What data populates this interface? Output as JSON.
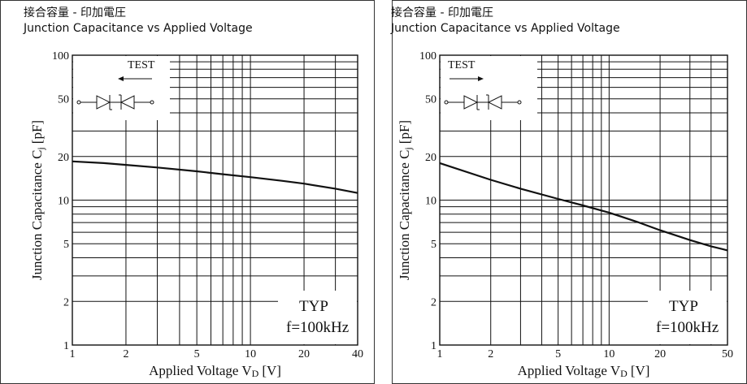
{
  "chart_data": [
    {
      "type": "line",
      "title_jp": "接合容量 - 印加電圧",
      "title": "Junction Capacitance vs Applied Voltage",
      "xlabel": "Applied Voltage V",
      "xlabel_sub": "D",
      "xlabel_unit": "[V]",
      "ylabel": "Junction Capacitance C",
      "ylabel_sub": "j",
      "ylabel_unit": "[pF]",
      "xscale": "log",
      "yscale": "log",
      "xlim": [
        1,
        40
      ],
      "ylim": [
        1,
        100
      ],
      "xticks": [
        1,
        2,
        5,
        10,
        20,
        40
      ],
      "yticks": [
        1,
        2,
        5,
        10,
        20,
        50,
        100
      ],
      "grid": true,
      "test_label": "TEST",
      "test_arrow": "left",
      "annotation": [
        "TYP",
        "f=100kHz"
      ],
      "series": [
        {
          "x": [
            1,
            1.5,
            2,
            3,
            5,
            7,
            10,
            15,
            20,
            30,
            40
          ],
          "y": [
            18.5,
            18.0,
            17.5,
            16.8,
            15.8,
            15.1,
            14.4,
            13.6,
            13.0,
            12.0,
            11.2
          ]
        }
      ]
    },
    {
      "type": "line",
      "title_jp": "接合容量 - 印加電圧",
      "title": "Junction Capacitance vs Applied Voltage",
      "xlabel": "Applied Voltage V",
      "xlabel_sub": "D",
      "xlabel_unit": "[V]",
      "ylabel": "Junction Capacitance C",
      "ylabel_sub": "j",
      "ylabel_unit": "[pF]",
      "xscale": "log",
      "yscale": "log",
      "xlim": [
        1,
        50
      ],
      "ylim": [
        1,
        100
      ],
      "xticks": [
        1,
        2,
        5,
        10,
        20,
        50
      ],
      "yticks": [
        1,
        2,
        5,
        10,
        20,
        50,
        100
      ],
      "grid": true,
      "test_label": "TEST",
      "test_arrow": "right",
      "annotation": [
        "TYP",
        "f=100kHz"
      ],
      "series": [
        {
          "x": [
            1,
            2,
            3,
            5,
            7,
            10,
            15,
            20,
            30,
            40,
            50
          ],
          "y": [
            18,
            13.8,
            12.0,
            10.2,
            9.2,
            8.2,
            7.0,
            6.2,
            5.3,
            4.8,
            4.5
          ]
        }
      ]
    }
  ]
}
